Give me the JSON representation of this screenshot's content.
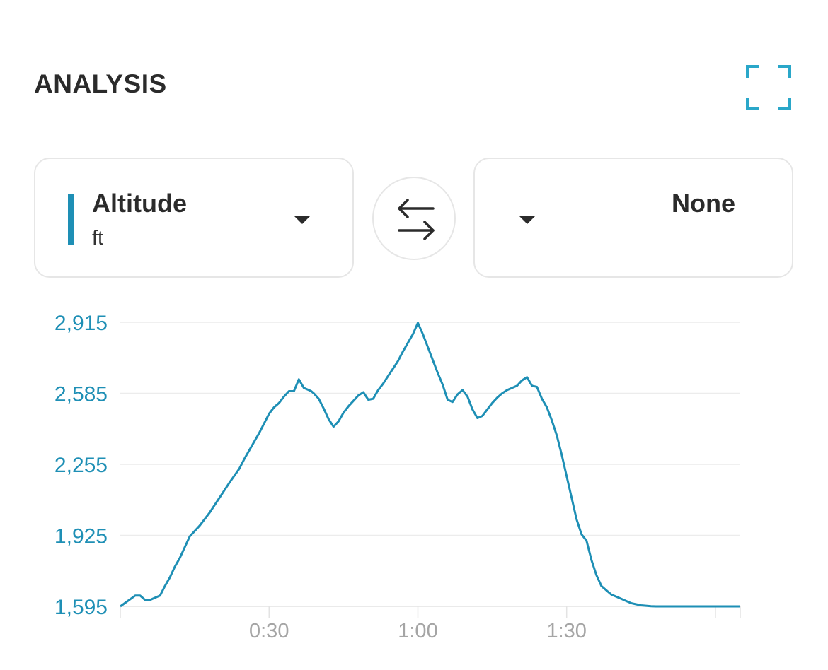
{
  "header": {
    "title": "ANALYSIS",
    "expand_icon": "expand-corners-icon"
  },
  "selectors": {
    "primary": {
      "label": "Altitude",
      "unit": "ft",
      "color": "#1e8fb5"
    },
    "swap_icon": "swap-arrows-icon",
    "secondary": {
      "label": "None"
    }
  },
  "chart_data": {
    "type": "line",
    "title": "",
    "xlabel": "",
    "ylabel": "",
    "y_ticks": [
      "1,595",
      "1,925",
      "2,255",
      "2,585",
      "2,915"
    ],
    "y_tick_values": [
      1595,
      1925,
      2255,
      2585,
      2915
    ],
    "x_ticks": [
      "0:30",
      "1:00",
      "1:30"
    ],
    "x_tick_values": [
      30,
      60,
      90
    ],
    "xlim": [
      0,
      125
    ],
    "ylim": [
      1595,
      2915
    ],
    "grid": true,
    "color": "#1e8fb5",
    "series": [
      {
        "name": "Altitude",
        "x": [
          0,
          3,
          4,
          5,
          6,
          7,
          8,
          9,
          10,
          11,
          12,
          13,
          14,
          16,
          18,
          20,
          22,
          24,
          25,
          26,
          28,
          30,
          31,
          32,
          33,
          34,
          35,
          36,
          37,
          38,
          38.5,
          39,
          40,
          41,
          42,
          43,
          44,
          45,
          46,
          47,
          48,
          49,
          50,
          51,
          52,
          53,
          54,
          55,
          56,
          57,
          58,
          59,
          60,
          61,
          62,
          63,
          64,
          65,
          66,
          67,
          68,
          69,
          70,
          71,
          72,
          73,
          74,
          75,
          76,
          77,
          78,
          79,
          80,
          81,
          82,
          83,
          84,
          85,
          86,
          87,
          88,
          89,
          90,
          91,
          92,
          93,
          94,
          95,
          96,
          97,
          98,
          99,
          100,
          101,
          102,
          103,
          104,
          105,
          106,
          107,
          108,
          109,
          110,
          111,
          112,
          113,
          114,
          115,
          116,
          117,
          118,
          119,
          120,
          121,
          122,
          123,
          124,
          125
        ],
        "y": [
          1595,
          1645,
          1645,
          1625,
          1625,
          1635,
          1645,
          1690,
          1730,
          1780,
          1820,
          1870,
          1920,
          1970,
          2030,
          2100,
          2170,
          2235,
          2280,
          2320,
          2400,
          2490,
          2520,
          2540,
          2570,
          2595,
          2595,
          2650,
          2610,
          2600,
          2595,
          2585,
          2560,
          2515,
          2465,
          2430,
          2455,
          2495,
          2525,
          2550,
          2575,
          2590,
          2555,
          2560,
          2600,
          2630,
          2665,
          2700,
          2735,
          2780,
          2820,
          2860,
          2912,
          2860,
          2800,
          2740,
          2680,
          2625,
          2555,
          2545,
          2580,
          2600,
          2570,
          2510,
          2470,
          2480,
          2510,
          2540,
          2565,
          2585,
          2600,
          2610,
          2620,
          2645,
          2660,
          2620,
          2615,
          2560,
          2520,
          2460,
          2390,
          2300,
          2200,
          2100,
          2000,
          1930,
          1900,
          1810,
          1740,
          1690,
          1670,
          1650,
          1640,
          1630,
          1620,
          1610,
          1605,
          1600,
          1598,
          1596,
          1595,
          1595,
          1595,
          1595,
          1595,
          1595,
          1595,
          1595,
          1595,
          1595,
          1595,
          1595,
          1595,
          1595,
          1595,
          1595,
          1595,
          1595
        ]
      }
    ]
  }
}
